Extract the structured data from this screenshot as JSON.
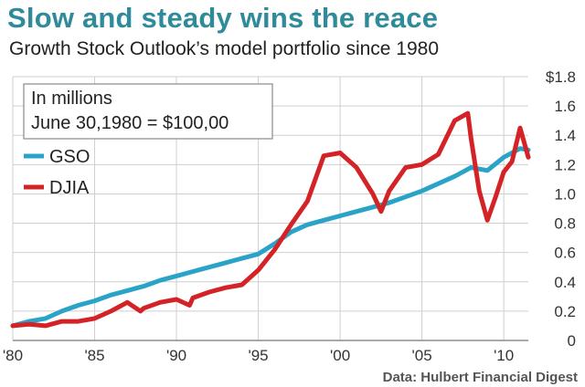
{
  "header": {
    "title": "Slow and steady wins the reace",
    "subtitle": "Growth Stock Outlook’s model portfolio since 1980"
  },
  "legend": {
    "note_line1": "In millions",
    "note_line2": "June 30,1980 = $100,00"
  },
  "source": "Data: Hulbert Financial Digest",
  "colors": {
    "gso": "#2aa3c8",
    "djia": "#d42327",
    "grid": "#cfcfcf",
    "title": "#2f8a9a"
  },
  "chart_data": {
    "type": "line",
    "y_unit_label": "$1.8",
    "xlim": [
      1980,
      2011.5
    ],
    "ylim": [
      0,
      1.8
    ],
    "x_ticks": [
      1980,
      1985,
      1990,
      1995,
      2000,
      2005,
      2010
    ],
    "x_tick_labels": [
      "'80",
      "'85",
      "'90",
      "'95",
      "'00",
      "'05",
      "'10"
    ],
    "y_ticks": [
      0,
      0.2,
      0.4,
      0.6,
      0.8,
      1.0,
      1.2,
      1.4,
      1.6,
      1.8
    ],
    "y_tick_labels": [
      "0",
      "0.2",
      "0.4",
      "0.6",
      "0.8",
      "1.0",
      "1.2",
      "1.4",
      "1.6",
      "$1.8"
    ],
    "grid": true,
    "legend_position": "top-left",
    "series": [
      {
        "name": "GSO",
        "x": [
          1980,
          1981,
          1982,
          1983,
          1984,
          1985,
          1986,
          1987,
          1988,
          1989,
          1990,
          1991,
          1992,
          1993,
          1994,
          1995,
          1996,
          1997,
          1998,
          1999,
          2000,
          2001,
          2002,
          2003,
          2004,
          2005,
          2006,
          2007,
          2008,
          2009,
          2010,
          2011,
          2011.5
        ],
        "y": [
          0.1,
          0.13,
          0.15,
          0.2,
          0.24,
          0.27,
          0.31,
          0.34,
          0.37,
          0.41,
          0.44,
          0.47,
          0.5,
          0.53,
          0.56,
          0.59,
          0.66,
          0.74,
          0.79,
          0.82,
          0.85,
          0.88,
          0.91,
          0.94,
          0.98,
          1.02,
          1.07,
          1.12,
          1.18,
          1.16,
          1.25,
          1.31,
          1.3
        ]
      },
      {
        "name": "DJIA",
        "x": [
          1980,
          1981,
          1982,
          1983,
          1984,
          1985,
          1986,
          1987,
          1987.8,
          1988,
          1989,
          1990,
          1990.8,
          1991,
          1992,
          1993,
          1994,
          1995,
          1996,
          1997,
          1998,
          1999,
          2000,
          2001,
          2002,
          2002.5,
          2003,
          2004,
          2005,
          2006,
          2007,
          2007.8,
          2008,
          2008.5,
          2009,
          2009.5,
          2010,
          2010.5,
          2011,
          2011.5
        ],
        "y": [
          0.1,
          0.11,
          0.1,
          0.13,
          0.13,
          0.15,
          0.2,
          0.26,
          0.2,
          0.22,
          0.26,
          0.28,
          0.24,
          0.29,
          0.33,
          0.36,
          0.38,
          0.48,
          0.62,
          0.79,
          0.95,
          1.26,
          1.28,
          1.18,
          1.0,
          0.88,
          1.02,
          1.18,
          1.2,
          1.27,
          1.5,
          1.55,
          1.38,
          1.02,
          0.82,
          0.98,
          1.15,
          1.22,
          1.45,
          1.25
        ]
      }
    ]
  }
}
